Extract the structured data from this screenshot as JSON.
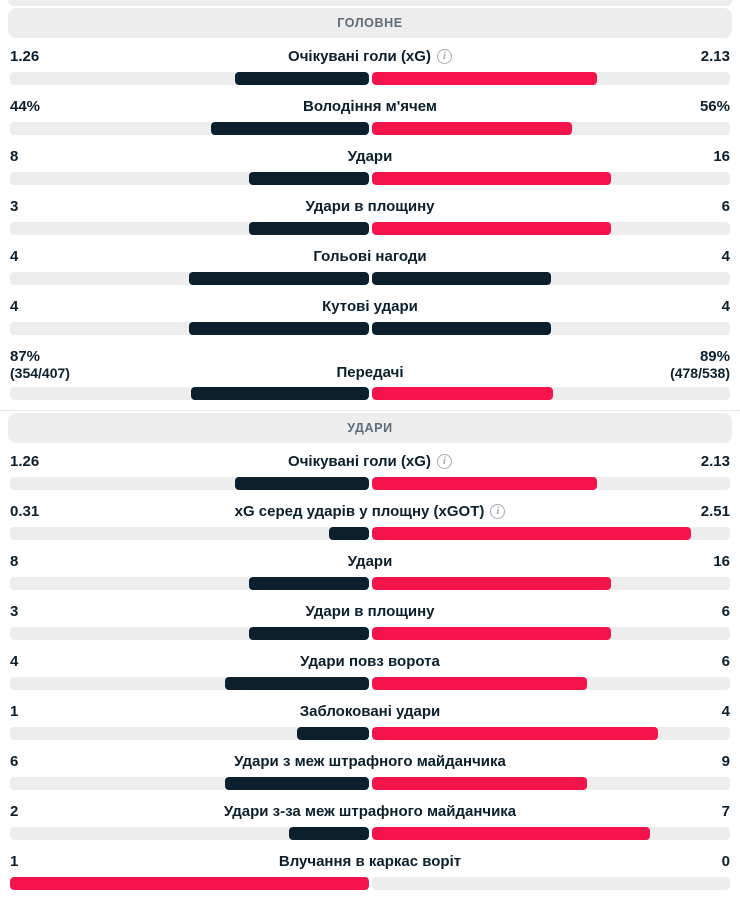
{
  "colors": {
    "accent_bar": "#f5134b",
    "dark_bar": "#0c1f2c",
    "track": "#ededed",
    "header_bg": "#ededed",
    "header_text": "#5f6d78"
  },
  "info_icon_glyph": "i",
  "sections": [
    {
      "title": "ГОЛОВНЕ",
      "rows": [
        {
          "label": "Очікувані голи (xG)",
          "info": true,
          "home": "1.26",
          "away": "2.13",
          "home_num": 1.26,
          "away_num": 2.13
        },
        {
          "label": "Володіння м'ячем",
          "info": false,
          "home": "44%",
          "away": "56%",
          "home_num": 44,
          "away_num": 56
        },
        {
          "label": "Удари",
          "info": false,
          "home": "8",
          "away": "16",
          "home_num": 8,
          "away_num": 16
        },
        {
          "label": "Удари в площину",
          "info": false,
          "home": "3",
          "away": "6",
          "home_num": 3,
          "away_num": 6
        },
        {
          "label": "Гольові нагоди",
          "info": false,
          "home": "4",
          "away": "4",
          "home_num": 4,
          "away_num": 4
        },
        {
          "label": "Кутові удари",
          "info": false,
          "home": "4",
          "away": "4",
          "home_num": 4,
          "away_num": 4
        },
        {
          "label": "Передачі",
          "info": false,
          "home": "87%",
          "away": "89%",
          "home_sub": "(354/407)",
          "away_sub": "(478/538)",
          "home_num": 87,
          "away_num": 89
        }
      ]
    },
    {
      "title": "УДАРИ",
      "rows": [
        {
          "label": "Очікувані голи (xG)",
          "info": true,
          "home": "1.26",
          "away": "2.13",
          "home_num": 1.26,
          "away_num": 2.13
        },
        {
          "label": "xG серед ударів у площну (xGOT)",
          "info": true,
          "home": "0.31",
          "away": "2.51",
          "home_num": 0.31,
          "away_num": 2.51
        },
        {
          "label": "Удари",
          "info": false,
          "home": "8",
          "away": "16",
          "home_num": 8,
          "away_num": 16
        },
        {
          "label": "Удари в площину",
          "info": false,
          "home": "3",
          "away": "6",
          "home_num": 3,
          "away_num": 6
        },
        {
          "label": "Удари повз ворота",
          "info": false,
          "home": "4",
          "away": "6",
          "home_num": 4,
          "away_num": 6
        },
        {
          "label": "Заблоковані удари",
          "info": false,
          "home": "1",
          "away": "4",
          "home_num": 1,
          "away_num": 4
        },
        {
          "label": "Удари з меж штрафного майданчика",
          "info": false,
          "home": "6",
          "away": "9",
          "home_num": 6,
          "away_num": 9
        },
        {
          "label": "Удари з-за меж штрафного майданчика",
          "info": false,
          "home": "2",
          "away": "7",
          "home_num": 2,
          "away_num": 7
        },
        {
          "label": "Влучання в каркас воріт",
          "info": false,
          "home": "1",
          "away": "0",
          "home_num": 1,
          "away_num": 0
        }
      ]
    }
  ]
}
